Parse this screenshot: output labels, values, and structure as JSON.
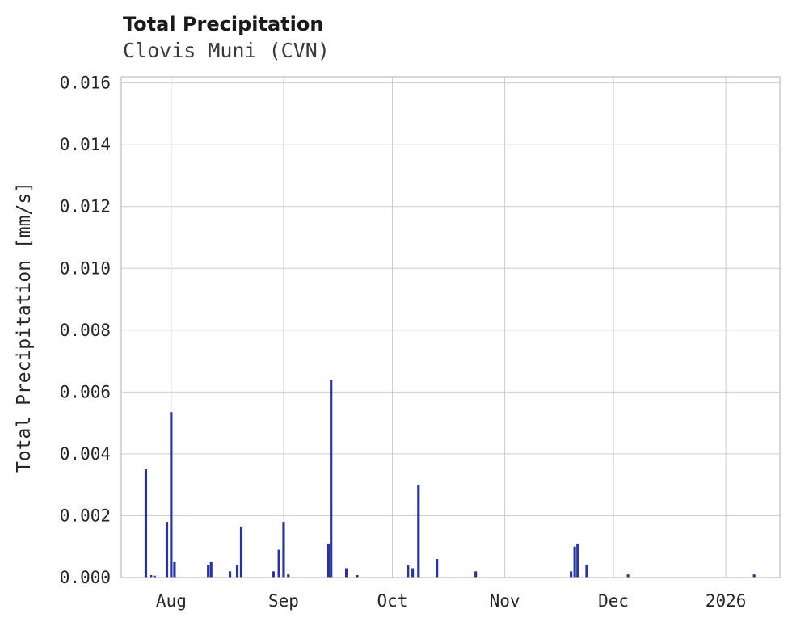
{
  "chart_data": {
    "type": "bar",
    "title": "Total Precipitation",
    "subtitle": "Clovis Muni (CVN)",
    "ylabel": "Total Precipitation [mm/s]",
    "ylim": [
      0,
      0.0162
    ],
    "x_domain_days": [
      -13.8,
      167.9
    ],
    "x_reference": "days relative to Aug 1",
    "grid": true,
    "legend": "none",
    "colors": {
      "bar": "#2733a3",
      "grid": "#cdcdcd",
      "axis_border": "#c3c3c3",
      "tick_label": "#262626"
    },
    "yticks": [
      {
        "value": 0.0,
        "label": "0.000"
      },
      {
        "value": 0.002,
        "label": "0.002"
      },
      {
        "value": 0.004,
        "label": "0.004"
      },
      {
        "value": 0.006,
        "label": "0.006"
      },
      {
        "value": 0.008,
        "label": "0.008"
      },
      {
        "value": 0.01,
        "label": "0.010"
      },
      {
        "value": 0.012,
        "label": "0.012"
      },
      {
        "value": 0.014,
        "label": "0.014"
      },
      {
        "value": 0.016,
        "label": "0.016"
      }
    ],
    "xticks": [
      {
        "day": 0,
        "label": "Aug"
      },
      {
        "day": 31,
        "label": "Sep"
      },
      {
        "day": 61,
        "label": "Oct"
      },
      {
        "day": 92,
        "label": "Nov"
      },
      {
        "day": 122,
        "label": "Dec"
      },
      {
        "day": 153,
        "label": "2026"
      }
    ],
    "bar_width_days": 0.7,
    "bars": [
      {
        "day": -7.0,
        "value": 0.0035
      },
      {
        "day": -5.6,
        "value": 8e-05
      },
      {
        "day": -4.6,
        "value": 6e-05
      },
      {
        "day": -1.2,
        "value": 0.0018
      },
      {
        "day": 0.0,
        "value": 0.00535
      },
      {
        "day": 0.9,
        "value": 0.0005
      },
      {
        "day": 10.2,
        "value": 0.0004
      },
      {
        "day": 11.0,
        "value": 0.0005
      },
      {
        "day": 16.2,
        "value": 0.0002
      },
      {
        "day": 18.2,
        "value": 0.0004
      },
      {
        "day": 19.3,
        "value": 0.00165
      },
      {
        "day": 28.2,
        "value": 0.0002
      },
      {
        "day": 29.7,
        "value": 0.0009
      },
      {
        "day": 31.0,
        "value": 0.0018
      },
      {
        "day": 32.3,
        "value": 0.0001
      },
      {
        "day": 43.4,
        "value": 0.0011
      },
      {
        "day": 44.1,
        "value": 0.0064
      },
      {
        "day": 48.3,
        "value": 0.0003
      },
      {
        "day": 51.3,
        "value": 8e-05
      },
      {
        "day": 65.3,
        "value": 0.0004
      },
      {
        "day": 66.6,
        "value": 0.0003
      },
      {
        "day": 68.2,
        "value": 0.003
      },
      {
        "day": 73.3,
        "value": 0.0006
      },
      {
        "day": 84.0,
        "value": 0.0002
      },
      {
        "day": 110.3,
        "value": 0.0002
      },
      {
        "day": 111.3,
        "value": 0.001
      },
      {
        "day": 112.1,
        "value": 0.0011
      },
      {
        "day": 114.6,
        "value": 0.0004
      },
      {
        "day": 126.0,
        "value": 0.0001
      },
      {
        "day": 160.8,
        "value": 0.0001
      }
    ]
  }
}
